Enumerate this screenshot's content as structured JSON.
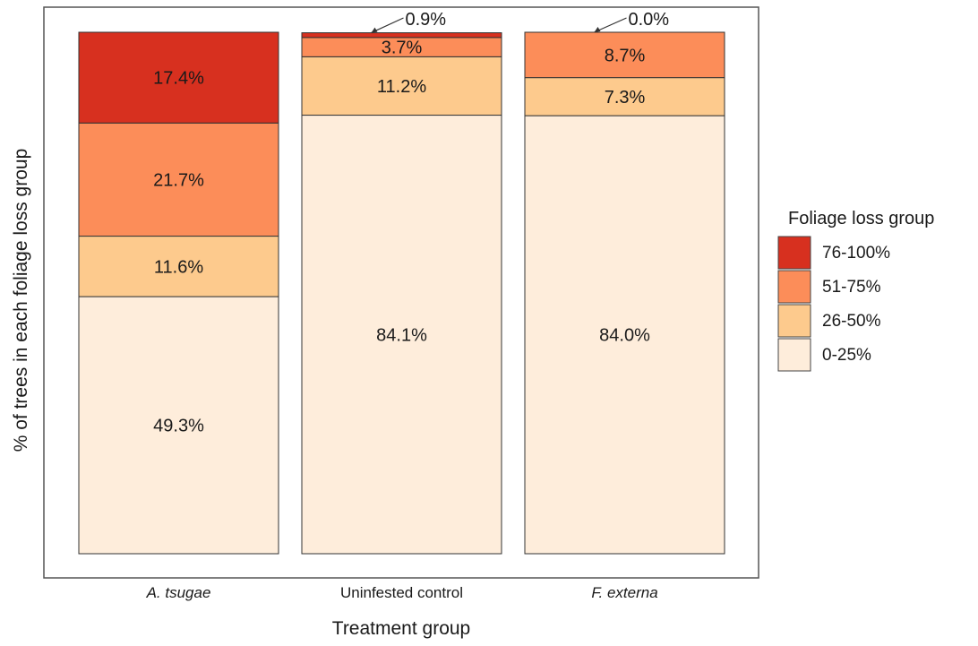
{
  "chart_data": {
    "type": "bar",
    "stacked": true,
    "title": "",
    "xlabel": "Treatment group",
    "ylabel": "% of trees in each foliage loss group",
    "ylim": [
      0,
      100
    ],
    "grid": false,
    "legend_position": "right",
    "categories": [
      "A. tsugae",
      "Uninfested control",
      "F. externa"
    ],
    "category_italic": [
      true,
      false,
      true
    ],
    "legend_title": "Foliage loss group",
    "series": [
      {
        "name": "0-25%",
        "color": "#FEEDDB",
        "values": [
          49.3,
          84.1,
          84.0
        ],
        "labels": [
          "49.3%",
          "84.1%",
          "84.0%"
        ]
      },
      {
        "name": "26-50%",
        "color": "#FDCA8D",
        "values": [
          11.6,
          11.2,
          7.3
        ],
        "labels": [
          "11.6%",
          "11.2%",
          "7.3%"
        ]
      },
      {
        "name": "51-75%",
        "color": "#FC8D59",
        "values": [
          21.7,
          3.7,
          8.7
        ],
        "labels": [
          "21.7%",
          "3.7%",
          "8.7%"
        ]
      },
      {
        "name": "76-100%",
        "color": "#D7301F",
        "values": [
          17.4,
          0.9,
          0.0
        ],
        "labels": [
          "17.4%",
          "0.9%",
          "0.0%"
        ]
      }
    ],
    "legend_order": [
      "76-100%",
      "51-75%",
      "26-50%",
      "0-25%"
    ],
    "annotated_with_arrows": [
      "0.9%",
      "0.0%"
    ]
  }
}
